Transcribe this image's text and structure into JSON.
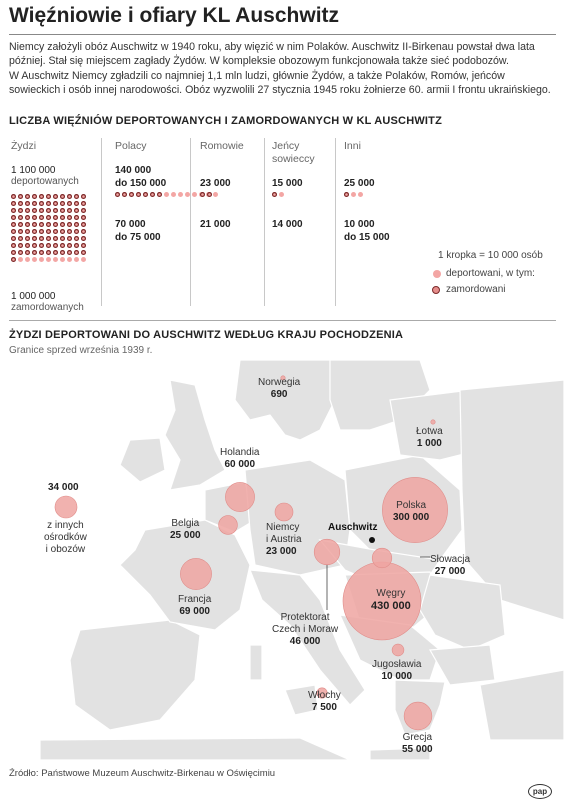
{
  "title": "Więźniowie i ofiary KL Auschwitz",
  "intro": [
    "Niemcy założyli obóz Auschwitz w 1940 roku, aby więzić w nim Polaków. Auschwitz II-Birkenau powstał dwa lata",
    "później. Stał się miejscem zagłady Żydów. W kompleksie obozowym funkcjonowała także sieć podobozów.",
    "W Auschwitz Niemcy zgładzili co najmniej 1,1 mln ludzi, głównie Żydów, a także Polaków, Romów, jeńców",
    "sowieckich i osób innej narodowości. Obóz wyzwolili 27 stycznia 1945 roku żołnierze 60. armii I frontu ukraińskiego."
  ],
  "section1": "LICZBA WIĘŹNIÓW DEPORTOWANYCH I ZAMORDOWANYCH W KL AUSCHWITZ",
  "section2": "ŻYDZI DEPORTOWANI DO AUSCHWITZ WEDŁUG KRAJU POCHODZENIA",
  "section2_sub": "Granice sprzed września 1939 r.",
  "colors": {
    "deported": "#f3a6a4",
    "murdered_ring": "#7a2a2a",
    "map_land": "#e3e3e3",
    "map_border": "#ffffff",
    "bubble": "#eea4a1"
  },
  "chart_data": [
    {
      "type": "dot-matrix",
      "title": "LICZBA WIĘŹNIÓW DEPORTOWANYCH I ZAMORDOWANYCH W KL AUSCHWITZ",
      "unit_note": "1 kropka = 10 000 osób",
      "legend": {
        "deported": "deportowani, w tym:",
        "murdered": "zamordowani"
      },
      "groups": [
        {
          "name": "Żydzi",
          "deported_label": "1 100 000",
          "deported_note": "deportowanych",
          "murdered_label": "1 000 000",
          "murdered_note": "zamordowanych",
          "deported_dots": 110,
          "murdered_dots": 100
        },
        {
          "name": "Polacy",
          "deported_label": "140 000 do 150 000",
          "murdered_label": "70 000 do 75 000",
          "deported_dots": 15,
          "murdered_dots": 7
        },
        {
          "name": "Romowie",
          "deported_label": "23 000",
          "murdered_label": "21 000",
          "deported_dots": 2,
          "murdered_dots": 2
        },
        {
          "name": "Jeńcy sowieccy",
          "deported_label": "15 000",
          "murdered_label": "14 000",
          "deported_dots": 2,
          "murdered_dots": 1
        },
        {
          "name": "Inni",
          "deported_label": "25 000",
          "murdered_label": "10 000 do 15 000",
          "deported_dots": 3,
          "murdered_dots": 1
        }
      ]
    },
    {
      "type": "bubble-map",
      "title": "ŻYDZI DEPORTOWANI DO AUSCHWITZ WEDŁUG KRAJU POCHODZENIA",
      "subtitle": "Granice sprzed września 1939 r.",
      "points": [
        {
          "name": "Węgry",
          "value": 430000,
          "label": "430 000"
        },
        {
          "name": "Polska",
          "value": 300000,
          "label": "300 000"
        },
        {
          "name": "Francja",
          "value": 69000,
          "label": "69 000"
        },
        {
          "name": "Holandia",
          "value": 60000,
          "label": "60 000"
        },
        {
          "name": "Grecja",
          "value": 55000,
          "label": "55 000"
        },
        {
          "name": "Protektorat Czech i Moraw",
          "value": 46000,
          "label": "46 000"
        },
        {
          "name": "z innych ośrodków i obozów",
          "value": 34000,
          "label": "34 000"
        },
        {
          "name": "Słowacja",
          "value": 27000,
          "label": "27 000"
        },
        {
          "name": "Belgia",
          "value": 25000,
          "label": "25 000"
        },
        {
          "name": "Niemcy i Austria",
          "value": 23000,
          "label": "23 000"
        },
        {
          "name": "Jugosławia",
          "value": 10000,
          "label": "10 000"
        },
        {
          "name": "Włochy",
          "value": 7500,
          "label": "7 500"
        },
        {
          "name": "Łotwa",
          "value": 1000,
          "label": "1 000"
        },
        {
          "name": "Norwegia",
          "value": 690,
          "label": "690"
        }
      ],
      "camp_label": "Auschwitz"
    }
  ],
  "cols": [
    {
      "name": "Żydzi",
      "dep1": "1 100 000",
      "dep2": "deportowanych",
      "mur1": "1 000 000",
      "mur2": "zamordowanych"
    },
    {
      "name": "Polacy",
      "dep1": "140 000",
      "dep2": "do 150 000",
      "mur1": "70 000",
      "mur2": "do 75 000"
    },
    {
      "name": "Romowie",
      "dep1": "23 000",
      "mur1": "21 000"
    },
    {
      "name1": "Jeńcy",
      "name2": "sowieccy",
      "dep1": "15 000",
      "mur1": "14 000"
    },
    {
      "name": "Inni",
      "dep1": "25 000",
      "mur1": "10 000",
      "mur2": "do 15 000"
    }
  ],
  "map_labels": {
    "norwegia": {
      "name": "Norwegia",
      "v": "690"
    },
    "lotwa": {
      "name": "Łotwa",
      "v": "1 000"
    },
    "holandia": {
      "name": "Holandia",
      "v": "60 000"
    },
    "polska": {
      "name": "Polska",
      "v": "300 000"
    },
    "belgia": {
      "name": "Belgia",
      "v": "25 000"
    },
    "niemcy": {
      "name1": "Niemcy",
      "name2": "i Austria",
      "v": "23 000"
    },
    "auschwitz": "Auschwitz",
    "slowacja": {
      "name": "Słowacja",
      "v": "27 000"
    },
    "francja": {
      "name": "Francja",
      "v": "69 000"
    },
    "wegry": {
      "name": "Węgry",
      "v": "430 000"
    },
    "protektorat": {
      "name1": "Protektorat",
      "name2": "Czech i Moraw",
      "v": "46 000"
    },
    "jugoslawia": {
      "name": "Jugosławia",
      "v": "10 000"
    },
    "wlochy": {
      "name": "Włochy",
      "v": "7 500"
    },
    "grecja": {
      "name": "Grecja",
      "v": "55 000"
    },
    "inne": {
      "v": "34 000",
      "t1": "z innych",
      "t2": "ośrodków",
      "t3": "i obozów"
    }
  },
  "source": "Źródło: Państwowe Muzeum Auschwitz-Birkenau w Oświęcimiu",
  "logo": "pap"
}
